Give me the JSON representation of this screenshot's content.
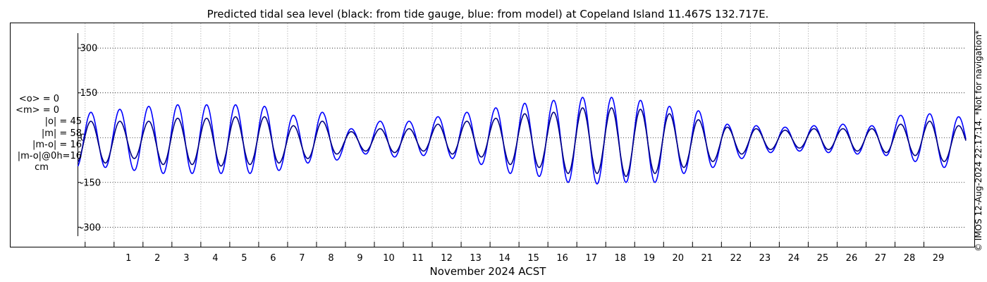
{
  "chart_data": {
    "type": "line",
    "title": "Predicted tidal sea level (black: from tide gauge, blue: from model) at Copeland Island 11.467S 132.717E.",
    "xlabel": "November 2024 ACST",
    "ylabel": "",
    "ylim": [
      -330,
      350
    ],
    "xlim": [
      -0.75,
      29.95
    ],
    "yticks": [
      300,
      150,
      0,
      -150,
      -300
    ],
    "ytick_labels": [
      "300",
      "150",
      "0",
      "-150",
      "-300"
    ],
    "xticks": [
      1,
      2,
      3,
      4,
      5,
      6,
      7,
      8,
      9,
      10,
      11,
      12,
      13,
      14,
      15,
      16,
      17,
      18,
      19,
      20,
      21,
      22,
      23,
      24,
      25,
      26,
      27,
      28,
      29
    ],
    "xtick_labels": [
      "1",
      "2",
      "3",
      "4",
      "5",
      "6",
      "7",
      "8",
      "9",
      "10",
      "11",
      "12",
      "13",
      "14",
      "15",
      "16",
      "17",
      "18",
      "19",
      "20",
      "21",
      "22",
      "23",
      "24",
      "25",
      "26",
      "27",
      "28",
      "29"
    ],
    "grid": true,
    "series": [
      {
        "name": "from tide gauge",
        "color": "#000080"
      },
      {
        "name": "from model",
        "color": "#0000ff"
      }
    ],
    "extremes": [
      {
        "day": -0.3,
        "gauge": [
          55,
          -85
        ],
        "model": [
          85,
          -100
        ]
      },
      {
        "day": 0.7,
        "gauge": [
          55,
          -70
        ],
        "model": [
          95,
          -110
        ]
      },
      {
        "day": 1.7,
        "gauge": [
          55,
          -90
        ],
        "model": [
          105,
          -120
        ]
      },
      {
        "day": 2.7,
        "gauge": [
          65,
          -90
        ],
        "model": [
          110,
          -120
        ]
      },
      {
        "day": 3.7,
        "gauge": [
          65,
          -95
        ],
        "model": [
          110,
          -120
        ]
      },
      {
        "day": 4.7,
        "gauge": [
          70,
          -90
        ],
        "model": [
          110,
          -120
        ]
      },
      {
        "day": 5.7,
        "gauge": [
          70,
          -85
        ],
        "model": [
          105,
          -110
        ]
      },
      {
        "day": 6.7,
        "gauge": [
          40,
          -70
        ],
        "model": [
          75,
          -85
        ]
      },
      {
        "day": 7.7,
        "gauge": [
          55,
          -55
        ],
        "model": [
          85,
          -75
        ]
      },
      {
        "day": 8.7,
        "gauge": [
          20,
          -45
        ],
        "model": [
          30,
          -55
        ]
      },
      {
        "day": 9.7,
        "gauge": [
          30,
          -50
        ],
        "model": [
          55,
          -65
        ]
      },
      {
        "day": 10.7,
        "gauge": [
          30,
          -45
        ],
        "model": [
          55,
          -60
        ]
      },
      {
        "day": 11.7,
        "gauge": [
          45,
          -55
        ],
        "model": [
          70,
          -70
        ]
      },
      {
        "day": 12.7,
        "gauge": [
          55,
          -65
        ],
        "model": [
          85,
          -90
        ]
      },
      {
        "day": 13.7,
        "gauge": [
          65,
          -90
        ],
        "model": [
          100,
          -120
        ]
      },
      {
        "day": 14.7,
        "gauge": [
          80,
          -100
        ],
        "model": [
          115,
          -130
        ]
      },
      {
        "day": 15.7,
        "gauge": [
          85,
          -120
        ],
        "model": [
          125,
          -150
        ]
      },
      {
        "day": 16.7,
        "gauge": [
          100,
          -120
        ],
        "model": [
          135,
          -155
        ]
      },
      {
        "day": 17.7,
        "gauge": [
          100,
          -130
        ],
        "model": [
          135,
          -150
        ]
      },
      {
        "day": 18.7,
        "gauge": [
          95,
          -120
        ],
        "model": [
          125,
          -150
        ]
      },
      {
        "day": 19.7,
        "gauge": [
          80,
          -100
        ],
        "model": [
          105,
          -120
        ]
      },
      {
        "day": 20.7,
        "gauge": [
          60,
          -80
        ],
        "model": [
          90,
          -100
        ]
      },
      {
        "day": 21.7,
        "gauge": [
          35,
          -55
        ],
        "model": [
          45,
          -70
        ]
      },
      {
        "day": 22.7,
        "gauge": [
          30,
          -40
        ],
        "model": [
          40,
          -50
        ]
      },
      {
        "day": 23.7,
        "gauge": [
          25,
          -35
        ],
        "model": [
          35,
          -45
        ]
      },
      {
        "day": 24.7,
        "gauge": [
          30,
          -40
        ],
        "model": [
          40,
          -50
        ]
      },
      {
        "day": 25.7,
        "gauge": [
          30,
          -45
        ],
        "model": [
          45,
          -55
        ]
      },
      {
        "day": 26.7,
        "gauge": [
          30,
          -50
        ],
        "model": [
          40,
          -60
        ]
      },
      {
        "day": 27.7,
        "gauge": [
          45,
          -60
        ],
        "model": [
          75,
          -80
        ]
      },
      {
        "day": 28.7,
        "gauge": [
          55,
          -80
        ],
        "model": [
          80,
          -100
        ]
      },
      {
        "day": 29.7,
        "gauge": [
          40,
          -60
        ],
        "model": [
          70,
          -80
        ]
      }
    ]
  },
  "stats": {
    "line1": "<o> = 0",
    "line2": "<m> = 0",
    "line3": "|o| = 45",
    "line4": "|m| = 58",
    "line5": "|m-o| = 16",
    "line6": "|m-o|@0h=16",
    "line7": "cm"
  },
  "stamp": "© IMOS 12-Aug-2024 22:17:14. *Not for navigation*"
}
